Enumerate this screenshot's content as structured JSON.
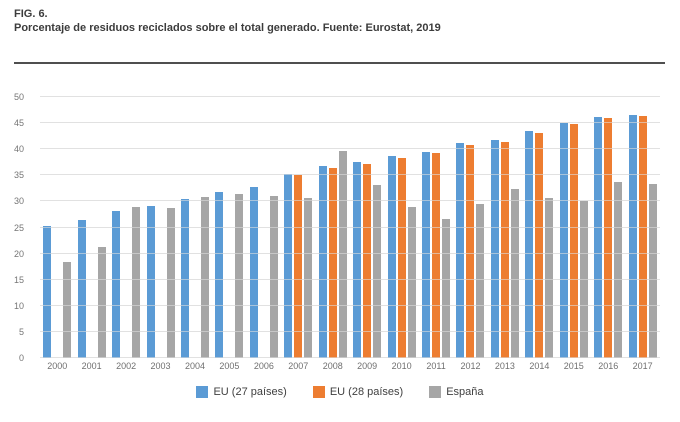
{
  "figure": {
    "label": "FIG. 6.",
    "title": "Porcentaje de residuos reciclados sobre el total generado. Fuente: Eurostat, 2019"
  },
  "chart_data": {
    "type": "bar",
    "title": "Porcentaje de residuos reciclados sobre el total generado",
    "source": "Eurostat, 2019",
    "categories": [
      "2000",
      "2001",
      "2002",
      "2003",
      "2004",
      "2005",
      "2006",
      "2007",
      "2008",
      "2009",
      "2010",
      "2011",
      "2012",
      "2013",
      "2014",
      "2015",
      "2016",
      "2017"
    ],
    "series": [
      {
        "key": "eu27",
        "name": "EU (27 países)",
        "color": "#5b9bd5",
        "values": [
          25.2,
          26.4,
          28.2,
          29.1,
          30.5,
          31.8,
          32.8,
          35.2,
          36.7,
          37.5,
          38.7,
          39.5,
          41.1,
          41.7,
          43.5,
          45.0,
          46.1,
          46.5
        ]
      },
      {
        "key": "eu28",
        "name": "EU (28 países)",
        "color": "#ed7d31",
        "values": [
          null,
          null,
          null,
          null,
          null,
          null,
          null,
          35.0,
          36.4,
          37.2,
          38.4,
          39.3,
          40.9,
          41.4,
          43.2,
          44.8,
          45.9,
          46.3
        ]
      },
      {
        "key": "espana",
        "name": "España",
        "color": "#a6a6a6",
        "values": [
          18.3,
          21.3,
          29.0,
          28.7,
          30.8,
          31.4,
          31.1,
          30.7,
          39.7,
          33.2,
          29.0,
          26.7,
          29.5,
          32.4,
          30.7,
          30.1,
          33.8,
          33.4
        ]
      }
    ],
    "ylim": [
      0,
      50
    ],
    "ytick_step": 5,
    "grid": true,
    "legend_position": "bottom"
  },
  "colors": {
    "background": "#ffffff",
    "separator": "#4f4f4f",
    "gridline": "#e7e7e7",
    "axis_text": "#757575",
    "title_text": "#3c3c3c",
    "legend_text": "#3f3f3f"
  }
}
